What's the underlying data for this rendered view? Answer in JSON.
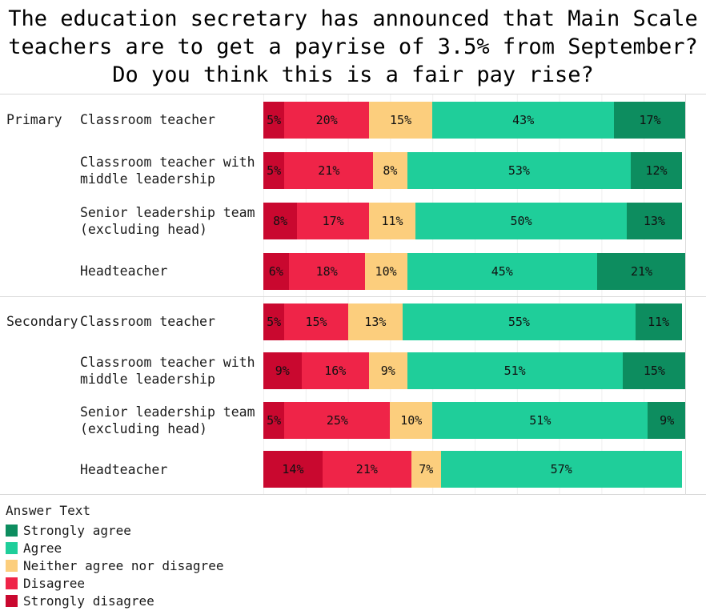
{
  "title": {
    "line1": "The education secretary has announced that Main Scale",
    "line2": "teachers are to get a payrise of 3.5% from September?",
    "line3": "Do you think this is a fair pay rise?"
  },
  "legend": {
    "title": "Answer Text",
    "items": [
      {
        "label": "Strongly agree"
      },
      {
        "label": "Agree"
      },
      {
        "label": "Neither agree nor disagree"
      },
      {
        "label": "Disagree"
      },
      {
        "label": "Strongly disagree"
      }
    ]
  },
  "chart_data": {
    "type": "bar",
    "orientation": "horizontal-stacked",
    "unit": "%",
    "xlim": [
      0,
      100
    ],
    "value_labels": "inside segments, percent",
    "grid": "faint vertical lines every 10%",
    "legend_position": "bottom-left",
    "series_order": [
      "Strongly disagree",
      "Disagree",
      "Neither agree nor disagree",
      "Agree",
      "Strongly agree"
    ],
    "colors": {
      "Strongly disagree": "#c9082f",
      "Disagree": "#ef2448",
      "Neither agree nor disagree": "#fcce7d",
      "Agree": "#1fce9a",
      "Strongly agree": "#0d8d5f"
    },
    "sections": [
      {
        "group": "Primary",
        "rows": [
          {
            "category": "Classroom teacher",
            "values": {
              "Strongly disagree": 5,
              "Disagree": 20,
              "Neither agree nor disagree": 15,
              "Agree": 43,
              "Strongly agree": 17
            }
          },
          {
            "category": "Classroom teacher with middle leadership",
            "values": {
              "Strongly disagree": 5,
              "Disagree": 21,
              "Neither agree nor disagree": 8,
              "Agree": 53,
              "Strongly agree": 12
            }
          },
          {
            "category": "Senior leadership team (excluding head)",
            "values": {
              "Strongly disagree": 8,
              "Disagree": 17,
              "Neither agree nor disagree": 11,
              "Agree": 50,
              "Strongly agree": 13
            }
          },
          {
            "category": "Headteacher",
            "values": {
              "Strongly disagree": 6,
              "Disagree": 18,
              "Neither agree nor disagree": 10,
              "Agree": 45,
              "Strongly agree": 21
            }
          }
        ]
      },
      {
        "group": "Secondary",
        "rows": [
          {
            "category": "Classroom teacher",
            "values": {
              "Strongly disagree": 5,
              "Disagree": 15,
              "Neither agree nor disagree": 13,
              "Agree": 55,
              "Strongly agree": 11
            }
          },
          {
            "category": "Classroom teacher with middle leadership",
            "values": {
              "Strongly disagree": 9,
              "Disagree": 16,
              "Neither agree nor disagree": 9,
              "Agree": 51,
              "Strongly agree": 15
            }
          },
          {
            "category": "Senior leadership team (excluding head)",
            "values": {
              "Strongly disagree": 5,
              "Disagree": 25,
              "Neither agree nor disagree": 10,
              "Agree": 51,
              "Strongly agree": 9
            }
          },
          {
            "category": "Headteacher",
            "values": {
              "Strongly disagree": 14,
              "Disagree": 21,
              "Neither agree nor disagree": 7,
              "Agree": 57
            }
          }
        ]
      }
    ]
  }
}
